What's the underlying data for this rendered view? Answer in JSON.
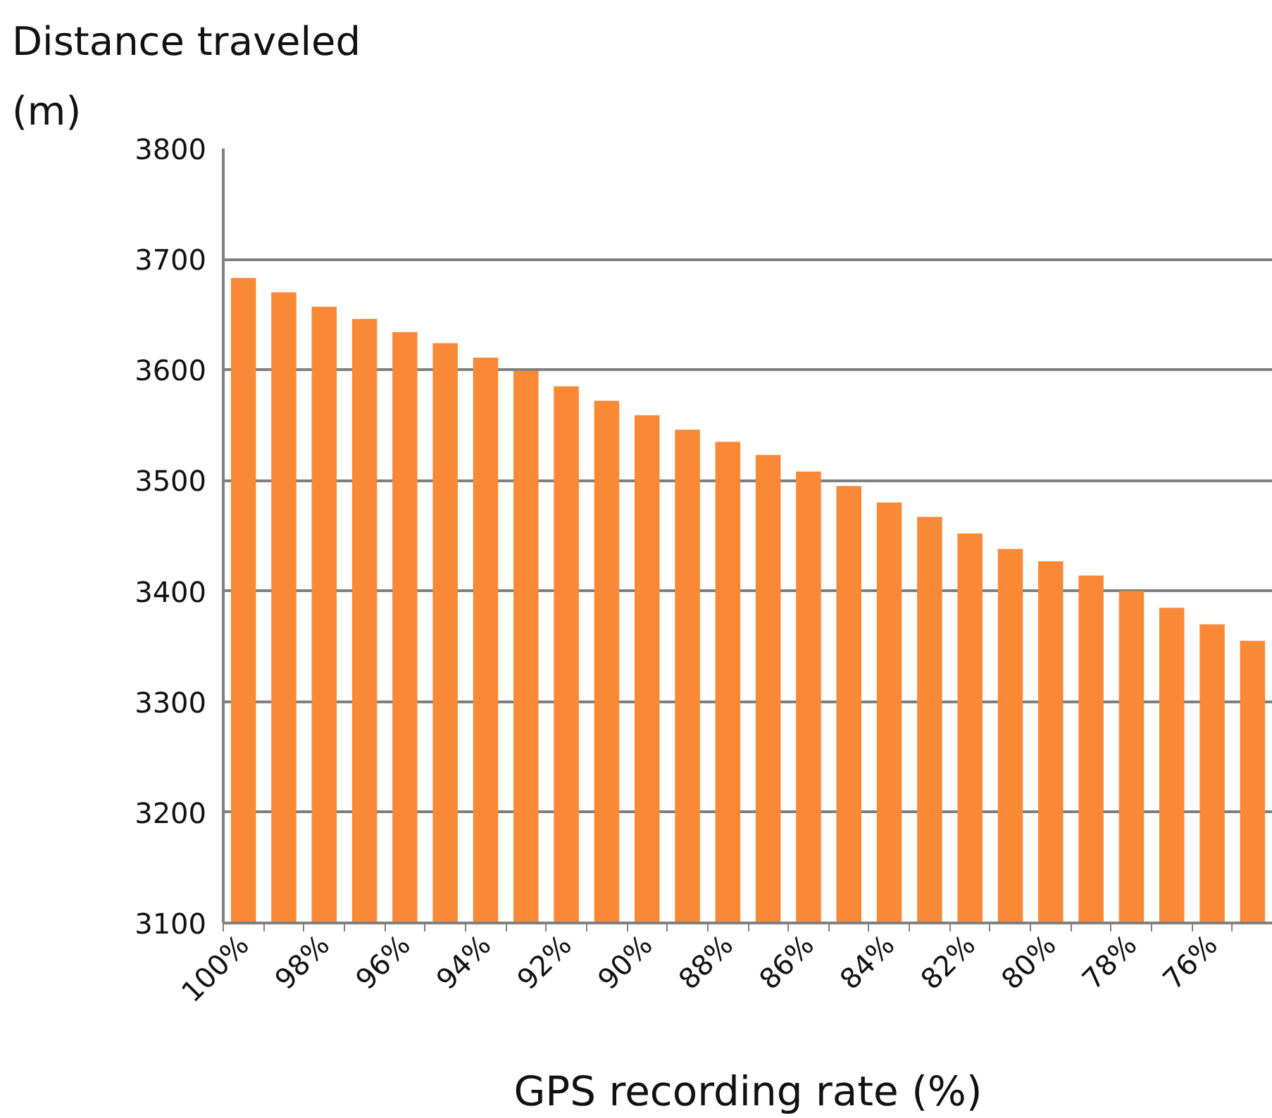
{
  "chart_data": {
    "type": "bar",
    "ylabel": "Distance traveled\n(m)",
    "xlabel": "GPS recording rate (%)",
    "categories": [
      "100%",
      null,
      "98%",
      null,
      "96%",
      null,
      "94%",
      null,
      "92%",
      null,
      "90%",
      null,
      "88%",
      null,
      "86%",
      null,
      "84%",
      null,
      "82%",
      null,
      "80%",
      null,
      "78%",
      null,
      "76%",
      null
    ],
    "values": [
      3683,
      3670,
      3657,
      3646,
      3634,
      3624,
      3611,
      3599,
      3585,
      3572,
      3559,
      3546,
      3535,
      3523,
      3508,
      3495,
      3480,
      3467,
      3452,
      3438,
      3427,
      3414,
      3400,
      3385,
      3370,
      3355
    ],
    "color": "#f98837",
    "ylim": [
      3100,
      3800
    ],
    "yticks": [
      3100,
      3200,
      3300,
      3400,
      3500,
      3600,
      3700,
      3800
    ],
    "grid": "y"
  }
}
